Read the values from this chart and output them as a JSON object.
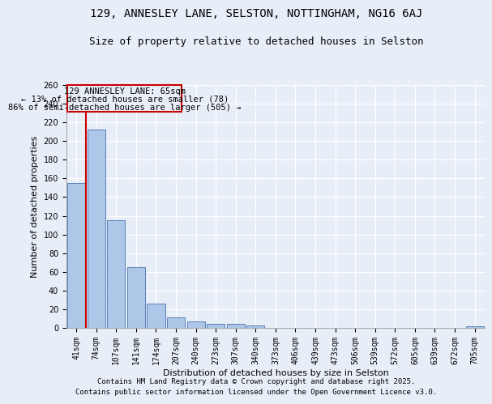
{
  "title1": "129, ANNESLEY LANE, SELSTON, NOTTINGHAM, NG16 6AJ",
  "title2": "Size of property relative to detached houses in Selston",
  "xlabel": "Distribution of detached houses by size in Selston",
  "ylabel": "Number of detached properties",
  "categories": [
    "41sqm",
    "74sqm",
    "107sqm",
    "141sqm",
    "174sqm",
    "207sqm",
    "240sqm",
    "273sqm",
    "307sqm",
    "340sqm",
    "373sqm",
    "406sqm",
    "439sqm",
    "473sqm",
    "506sqm",
    "539sqm",
    "572sqm",
    "605sqm",
    "639sqm",
    "672sqm",
    "705sqm"
  ],
  "values": [
    155,
    212,
    115,
    65,
    26,
    11,
    7,
    4,
    4,
    3,
    0,
    0,
    0,
    0,
    0,
    0,
    0,
    0,
    0,
    0,
    2
  ],
  "bar_color": "#aec6e8",
  "bar_edge_color": "#5580b8",
  "background_color": "#e8eef8",
  "grid_color": "#ffffff",
  "annotation_box_color": "#cc0000",
  "vline_color": "#cc0000",
  "annotation_text_line1": "129 ANNESLEY LANE: 65sqm",
  "annotation_text_line2": "← 13% of detached houses are smaller (78)",
  "annotation_text_line3": "86% of semi-detached houses are larger (505) →",
  "ylim": [
    0,
    260
  ],
  "yticks": [
    0,
    20,
    40,
    60,
    80,
    100,
    120,
    140,
    160,
    180,
    200,
    220,
    240,
    260
  ],
  "footer1": "Contains HM Land Registry data © Crown copyright and database right 2025.",
  "footer2": "Contains public sector information licensed under the Open Government Licence v3.0.",
  "title1_fontsize": 10,
  "title2_fontsize": 9,
  "tick_fontsize": 7,
  "ylabel_fontsize": 8,
  "xlabel_fontsize": 8,
  "footer_fontsize": 6.5,
  "annotation_fontsize": 7.5
}
